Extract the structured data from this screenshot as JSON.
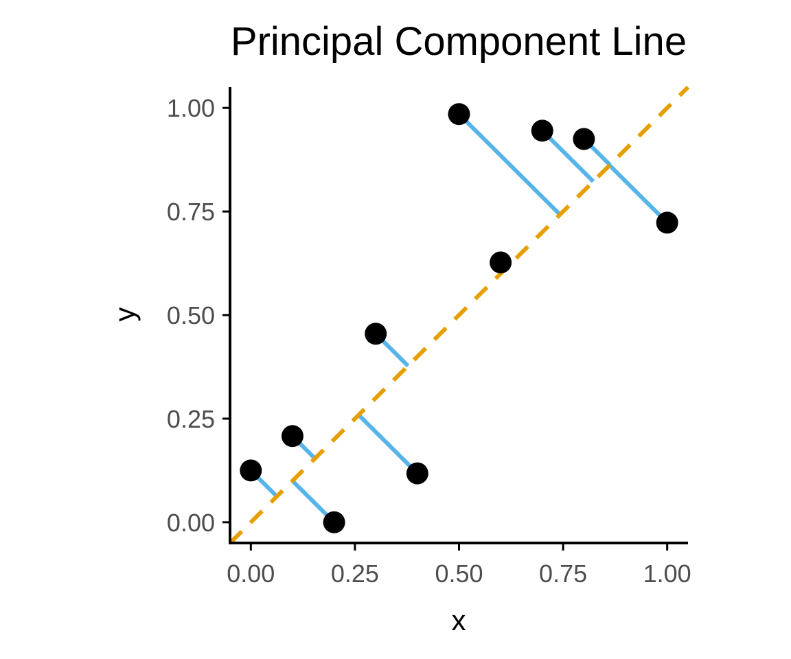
{
  "chart_data": {
    "type": "scatter",
    "title": "Principal Component Line",
    "xlabel": "x",
    "ylabel": "y",
    "xlim": [
      -0.05,
      1.05
    ],
    "ylim": [
      -0.05,
      1.05
    ],
    "x_ticks": [
      0,
      0.25,
      0.5,
      0.75,
      1
    ],
    "y_ticks": [
      0,
      0.25,
      0.5,
      0.75,
      1
    ],
    "x_tick_labels": [
      "0.00",
      "0.25",
      "0.50",
      "0.75",
      "1.00"
    ],
    "y_tick_labels": [
      "0.00",
      "0.25",
      "0.50",
      "0.75",
      "1.00"
    ],
    "grid": false,
    "points": [
      {
        "x": 0.0,
        "y": 0.125
      },
      {
        "x": 0.1,
        "y": 0.208
      },
      {
        "x": 0.2,
        "y": 0.0
      },
      {
        "x": 0.3,
        "y": 0.455
      },
      {
        "x": 0.4,
        "y": 0.118
      },
      {
        "x": 0.5,
        "y": 0.985
      },
      {
        "x": 0.6,
        "y": 0.627
      },
      {
        "x": 0.7,
        "y": 0.945
      },
      {
        "x": 0.8,
        "y": 0.925
      },
      {
        "x": 1.0,
        "y": 0.723
      }
    ],
    "principal_component_line": {
      "slope": 1.0,
      "intercept": 0.0,
      "style": "dashed"
    },
    "colors": {
      "points": "#000000",
      "pc_line": "#E69F00",
      "residuals": "#56B4E9",
      "axes": "#000000",
      "tick_labels": "#4d4d4d"
    }
  }
}
